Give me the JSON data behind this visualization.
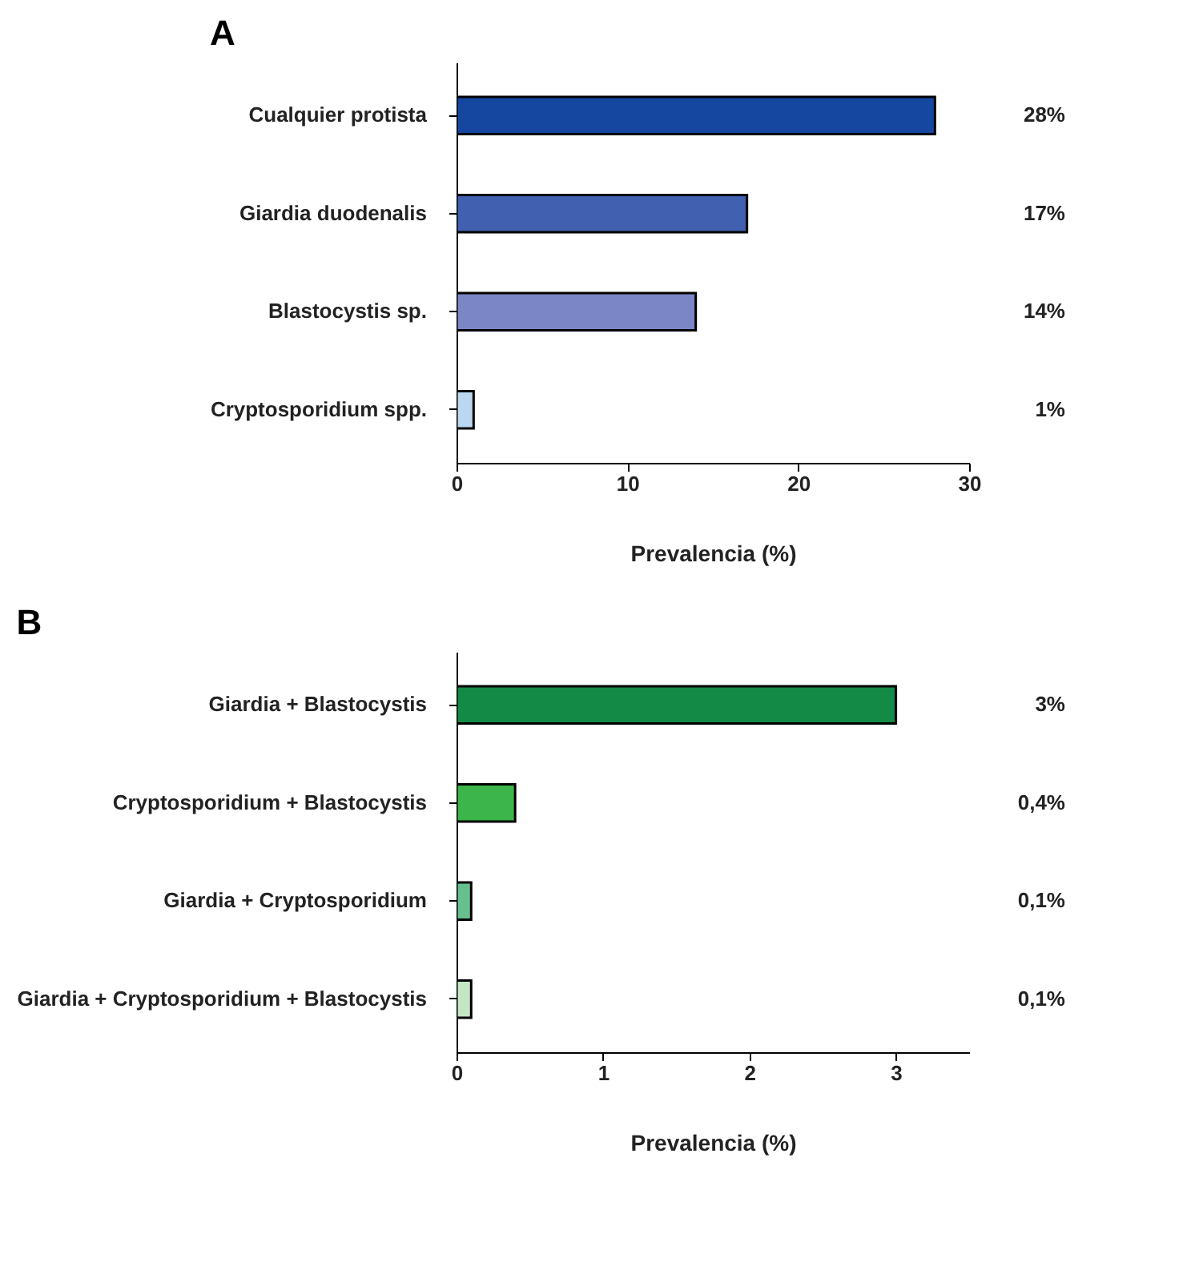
{
  "chart_data": [
    {
      "type": "bar",
      "orientation": "horizontal",
      "title": "A",
      "xlabel": "Prevalencia (%)",
      "categories": [
        "Cualquier protista",
        "Giardia duodenalis",
        "Blastocystis sp.",
        "Cryptosporidium spp."
      ],
      "values": [
        28,
        17,
        14,
        1
      ],
      "colors": [
        "#1546a0",
        "#4260b0",
        "#7b86c6",
        "#bcd8f0"
      ],
      "value_labels": [
        "28%",
        "17%",
        "14%",
        "1%"
      ],
      "xlim": [
        0,
        30
      ],
      "xticks": [
        0,
        10,
        20,
        30
      ],
      "grid": false
    },
    {
      "type": "bar",
      "orientation": "horizontal",
      "title": "B",
      "xlabel": "Prevalencia (%)",
      "categories": [
        "Giardia + Blastocystis",
        "Cryptosporidium + Blastocystis",
        "Giardia + Cryptosporidium",
        "Giardia + Cryptosporidium + Blastocystis"
      ],
      "values": [
        3,
        0.4,
        0.1,
        0.1
      ],
      "colors": [
        "#138a45",
        "#3cb54a",
        "#67bf8e",
        "#c5e6c5"
      ],
      "value_labels": [
        "3%",
        "0,4%",
        "0,1%",
        "0,1%"
      ],
      "xlim": [
        0,
        3.5
      ],
      "xticks": [
        0,
        1,
        2,
        3
      ],
      "grid": false
    }
  ]
}
